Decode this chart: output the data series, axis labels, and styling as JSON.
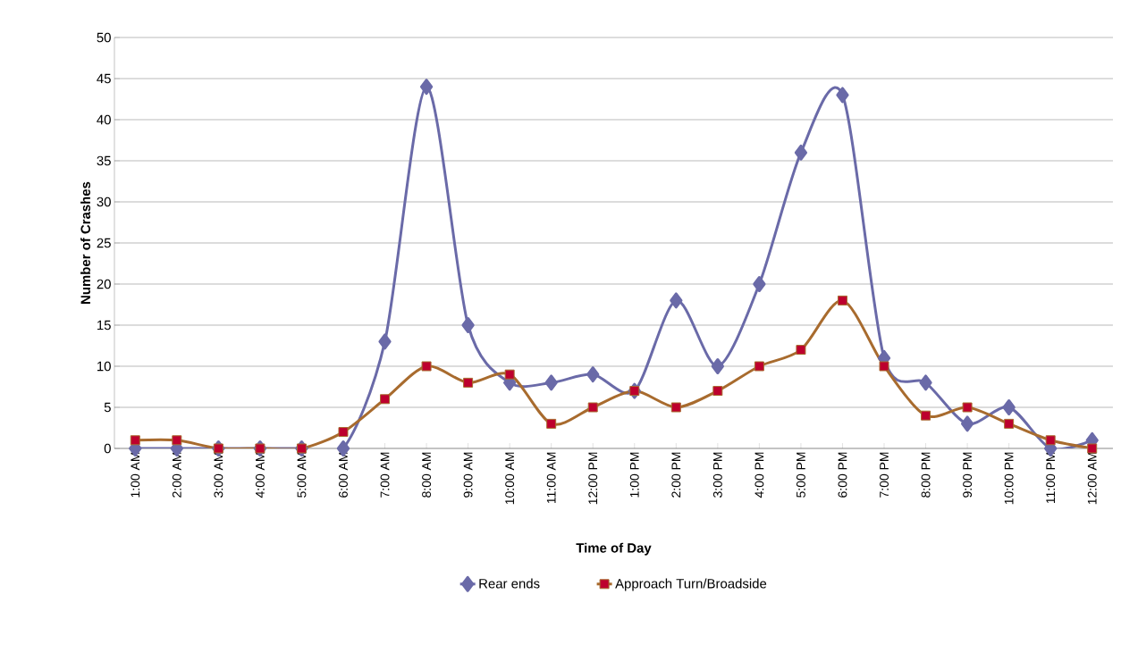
{
  "chart_data": {
    "type": "line",
    "xlabel": "Time of Day",
    "ylabel": "Number of Crashes",
    "categories": [
      "1:00 AM",
      "2:00 AM",
      "3:00 AM",
      "4:00 AM",
      "5:00 AM",
      "6:00 AM",
      "7:00 AM",
      "8:00 AM",
      "9:00 AM",
      "10:00 AM",
      "11:00 AM",
      "12:00 PM",
      "1:00 PM",
      "2:00 PM",
      "3:00 PM",
      "4:00 PM",
      "5:00 PM",
      "6:00 PM",
      "7:00 PM",
      "8:00 PM",
      "9:00 PM",
      "10:00 PM",
      "11:00 PM",
      "12:00 AM"
    ],
    "series": [
      {
        "name": "Rear ends",
        "color": "#6a6aa8",
        "marker": "diamond",
        "values": [
          0,
          0,
          0,
          0,
          0,
          0,
          13,
          44,
          15,
          8,
          8,
          9,
          7,
          18,
          10,
          20,
          36,
          43,
          11,
          8,
          3,
          5,
          0,
          1
        ]
      },
      {
        "name": "Approach Turn/Broadside",
        "color": "#a86b2e",
        "marker": "square",
        "values": [
          1,
          1,
          0,
          0,
          0,
          2,
          6,
          10,
          8,
          9,
          3,
          5,
          7,
          5,
          7,
          10,
          12,
          18,
          10,
          4,
          5,
          3,
          1,
          0
        ]
      }
    ],
    "ylim": [
      0,
      50
    ],
    "yticks": [
      0,
      5,
      10,
      15,
      20,
      25,
      30,
      35,
      40,
      45,
      50
    ],
    "grid": "y",
    "legend": "bottom",
    "line_style": "solid"
  }
}
